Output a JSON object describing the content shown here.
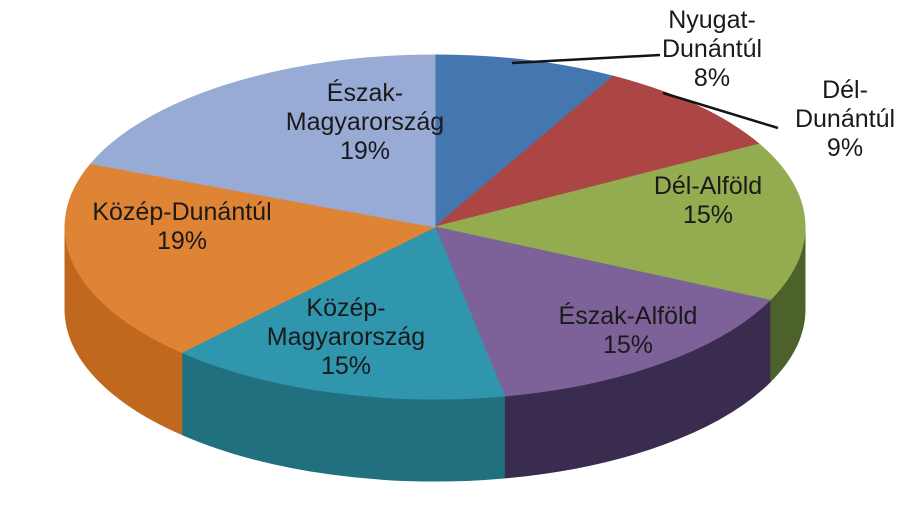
{
  "chart_data": {
    "type": "pie",
    "projection": "3d",
    "direction": "clockwise",
    "start_angle": "top",
    "background": "#ffffff",
    "label_color": "#1a1a1a",
    "leader_line_color": "#141414",
    "slices": [
      {
        "name": "Nyugat-Dunántúl",
        "pct": 8,
        "label_text": "Nyugat-\nDunántúl\n8%",
        "color": "#4476B0",
        "side_color": "#2E527C"
      },
      {
        "name": "Dél-Dunántúl",
        "pct": 9,
        "label_text": "Dél-\nDunántúl\n9%",
        "color": "#AC4645",
        "side_color": "#7A302F"
      },
      {
        "name": "Dél-Alföld",
        "pct": 15,
        "label_text": "Dél-Alföld\n15%",
        "color": "#94AC50",
        "side_color": "#4D612B"
      },
      {
        "name": "Észak-Alföld",
        "pct": 15,
        "label_text": "Észak-Alföld\n15%",
        "color": "#7C6299",
        "side_color": "#3A2C4E"
      },
      {
        "name": "Közép-Magyarország",
        "pct": 15,
        "label_text": "Közép-\nMagyarország\n15%",
        "color": "#2F96AE",
        "side_color": "#21707F"
      },
      {
        "name": "Közép-Dunántúl",
        "pct": 19,
        "label_text": "Közép-Dunántúl\n19%",
        "color": "#DE8434",
        "side_color": "#C0681E"
      },
      {
        "name": "Észak-Magyarország",
        "pct": 19,
        "label_text": "Észak-\nMagyarország\n19%",
        "color": "#97ABD4",
        "side_color": "#6A7FA8"
      }
    ]
  }
}
